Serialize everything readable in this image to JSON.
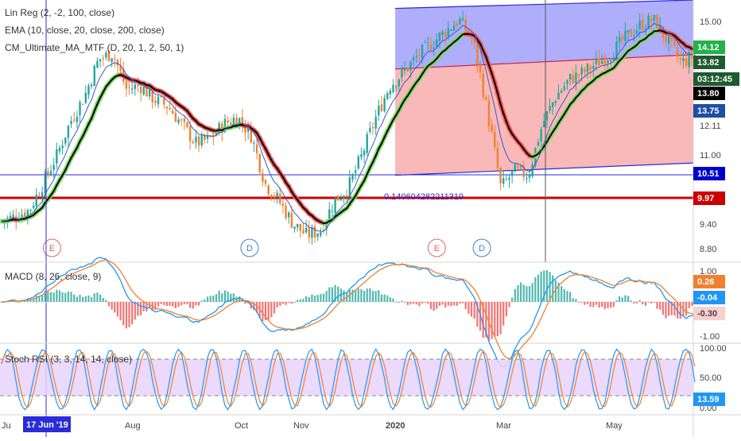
{
  "chart_data": {
    "type": "candlestick",
    "price_panel": {
      "y_scale": "log",
      "ylim": [
        8.6,
        15.7
      ],
      "y_ticks": [
        "15.00",
        "12.11",
        "11.00",
        "9.40",
        "8.80"
      ],
      "legend": [
        "Lin Reg (2, -2, 100, close)",
        "EMA (10, close, 20, close, 200, close)",
        "CM_Ultimate_MA_MTF (D, 20, 1, 2, 50, 1)"
      ],
      "price_tags": [
        {
          "value": "14.12",
          "color": "#22b14c"
        },
        {
          "value": "13.82",
          "color": "#1e5b2f"
        },
        {
          "value": "03:12:45",
          "color": "#1e5b2f"
        },
        {
          "value": "13.80",
          "color": "#000000"
        },
        {
          "value": "13.75",
          "color": "#1d4fa3"
        },
        {
          "value": "10.51",
          "color": "#0000cc"
        },
        {
          "value": "9.97",
          "color": "#cc0000"
        }
      ],
      "horizontal_lines": [
        {
          "value": 10.51,
          "color": "#2b2bd9"
        },
        {
          "value": 9.97,
          "color": "#cc0000"
        }
      ],
      "regression_label": "0.140604282211319",
      "event_markers": [
        {
          "label": "E",
          "color": "#e06666",
          "x": 0.075
        },
        {
          "label": "D",
          "color": "#3d85c6",
          "x": 0.36
        },
        {
          "label": "E",
          "color": "#e06666",
          "x": 0.63
        },
        {
          "label": "D",
          "color": "#3d85c6",
          "x": 0.695
        }
      ],
      "regression_channel": {
        "x_start": 0.57,
        "x_end": 1.0,
        "upper": [
          15.4,
          15.7
        ],
        "middle": [
          13.4,
          13.85
        ],
        "lower": [
          10.5,
          10.8
        ]
      },
      "price_series": [
        {
          "t": 0.0,
          "v": 9.45
        },
        {
          "t": 0.02,
          "v": 9.55
        },
        {
          "t": 0.04,
          "v": 9.7
        },
        {
          "t": 0.06,
          "v": 10.3
        },
        {
          "t": 0.08,
          "v": 11.0
        },
        {
          "t": 0.1,
          "v": 11.9
        },
        {
          "t": 0.12,
          "v": 12.6
        },
        {
          "t": 0.14,
          "v": 13.7
        },
        {
          "t": 0.16,
          "v": 13.9
        },
        {
          "t": 0.18,
          "v": 12.8
        },
        {
          "t": 0.2,
          "v": 12.9
        },
        {
          "t": 0.22,
          "v": 12.5
        },
        {
          "t": 0.24,
          "v": 12.3
        },
        {
          "t": 0.26,
          "v": 11.8
        },
        {
          "t": 0.28,
          "v": 11.3
        },
        {
          "t": 0.3,
          "v": 11.4
        },
        {
          "t": 0.32,
          "v": 11.8
        },
        {
          "t": 0.34,
          "v": 12.0
        },
        {
          "t": 0.36,
          "v": 11.5
        },
        {
          "t": 0.38,
          "v": 10.3
        },
        {
          "t": 0.4,
          "v": 9.9
        },
        {
          "t": 0.42,
          "v": 9.4
        },
        {
          "t": 0.44,
          "v": 9.15
        },
        {
          "t": 0.46,
          "v": 9.25
        },
        {
          "t": 0.48,
          "v": 9.9
        },
        {
          "t": 0.5,
          "v": 10.2
        },
        {
          "t": 0.52,
          "v": 11.0
        },
        {
          "t": 0.54,
          "v": 12.0
        },
        {
          "t": 0.56,
          "v": 12.9
        },
        {
          "t": 0.58,
          "v": 13.3
        },
        {
          "t": 0.6,
          "v": 13.8
        },
        {
          "t": 0.62,
          "v": 14.2
        },
        {
          "t": 0.64,
          "v": 14.6
        },
        {
          "t": 0.66,
          "v": 15.0
        },
        {
          "t": 0.68,
          "v": 14.3
        },
        {
          "t": 0.7,
          "v": 12.2
        },
        {
          "t": 0.72,
          "v": 10.2
        },
        {
          "t": 0.74,
          "v": 10.6
        },
        {
          "t": 0.76,
          "v": 10.5
        },
        {
          "t": 0.78,
          "v": 11.8
        },
        {
          "t": 0.8,
          "v": 12.6
        },
        {
          "t": 0.82,
          "v": 13.1
        },
        {
          "t": 0.84,
          "v": 13.3
        },
        {
          "t": 0.86,
          "v": 13.6
        },
        {
          "t": 0.88,
          "v": 13.9
        },
        {
          "t": 0.9,
          "v": 14.4
        },
        {
          "t": 0.92,
          "v": 14.8
        },
        {
          "t": 0.94,
          "v": 15.0
        },
        {
          "t": 0.96,
          "v": 14.3
        },
        {
          "t": 0.98,
          "v": 13.6
        },
        {
          "t": 1.0,
          "v": 13.8
        }
      ]
    },
    "macd_panel": {
      "legend": "MACD (8, 26, close, 9)",
      "ylim": [
        -1.2,
        1.1
      ],
      "y_ticks": [
        "1.00",
        "-1.00"
      ],
      "tags": [
        {
          "value": "0.26",
          "color": "#f08030"
        },
        {
          "value": "-0.04",
          "color": "#2196f3"
        },
        {
          "value": "-0.30",
          "color": "#f8d0d0"
        }
      ]
    },
    "stoch_panel": {
      "legend": "Stoch RSI (3, 3, 14, 14, close)",
      "ylim": [
        0,
        100
      ],
      "y_ticks": [
        "100.00",
        "50.00",
        "0.00"
      ],
      "bands": [
        20,
        80
      ],
      "tag": {
        "value": "13.59",
        "color": "#2196f3"
      }
    },
    "x_axis": {
      "ticks": [
        "Ju",
        "Aug",
        "Oct",
        "Nov",
        "2020",
        "Mar",
        "May"
      ],
      "highlight": "17 Jun '19"
    },
    "colors": {
      "up": "#26a69a",
      "down": "#ef8030",
      "ema_fast": "#3a59d0",
      "ema_slow": "#000000",
      "ma_up": "#7bd860",
      "ma_down": "#ef5350"
    }
  }
}
